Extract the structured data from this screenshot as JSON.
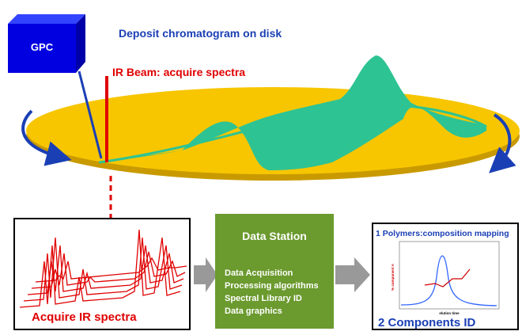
{
  "gpc": {
    "label": "GPC"
  },
  "deposit": {
    "label": "Deposit chromatogram on disk"
  },
  "ir_beam": {
    "label": "IR Beam: acquire spectra"
  },
  "spectra_box": {
    "label": "Acquire IR spectra"
  },
  "data_station": {
    "title": "Data Station",
    "items": [
      "Data Acquisition",
      "Processing algorithms",
      "Spectral Library ID",
      "Data graphics"
    ]
  },
  "results": {
    "title": "1 Polymers:composition mapping",
    "y_label": "% component A",
    "x_label": "elution time",
    "footer": "2 Components ID"
  }
}
